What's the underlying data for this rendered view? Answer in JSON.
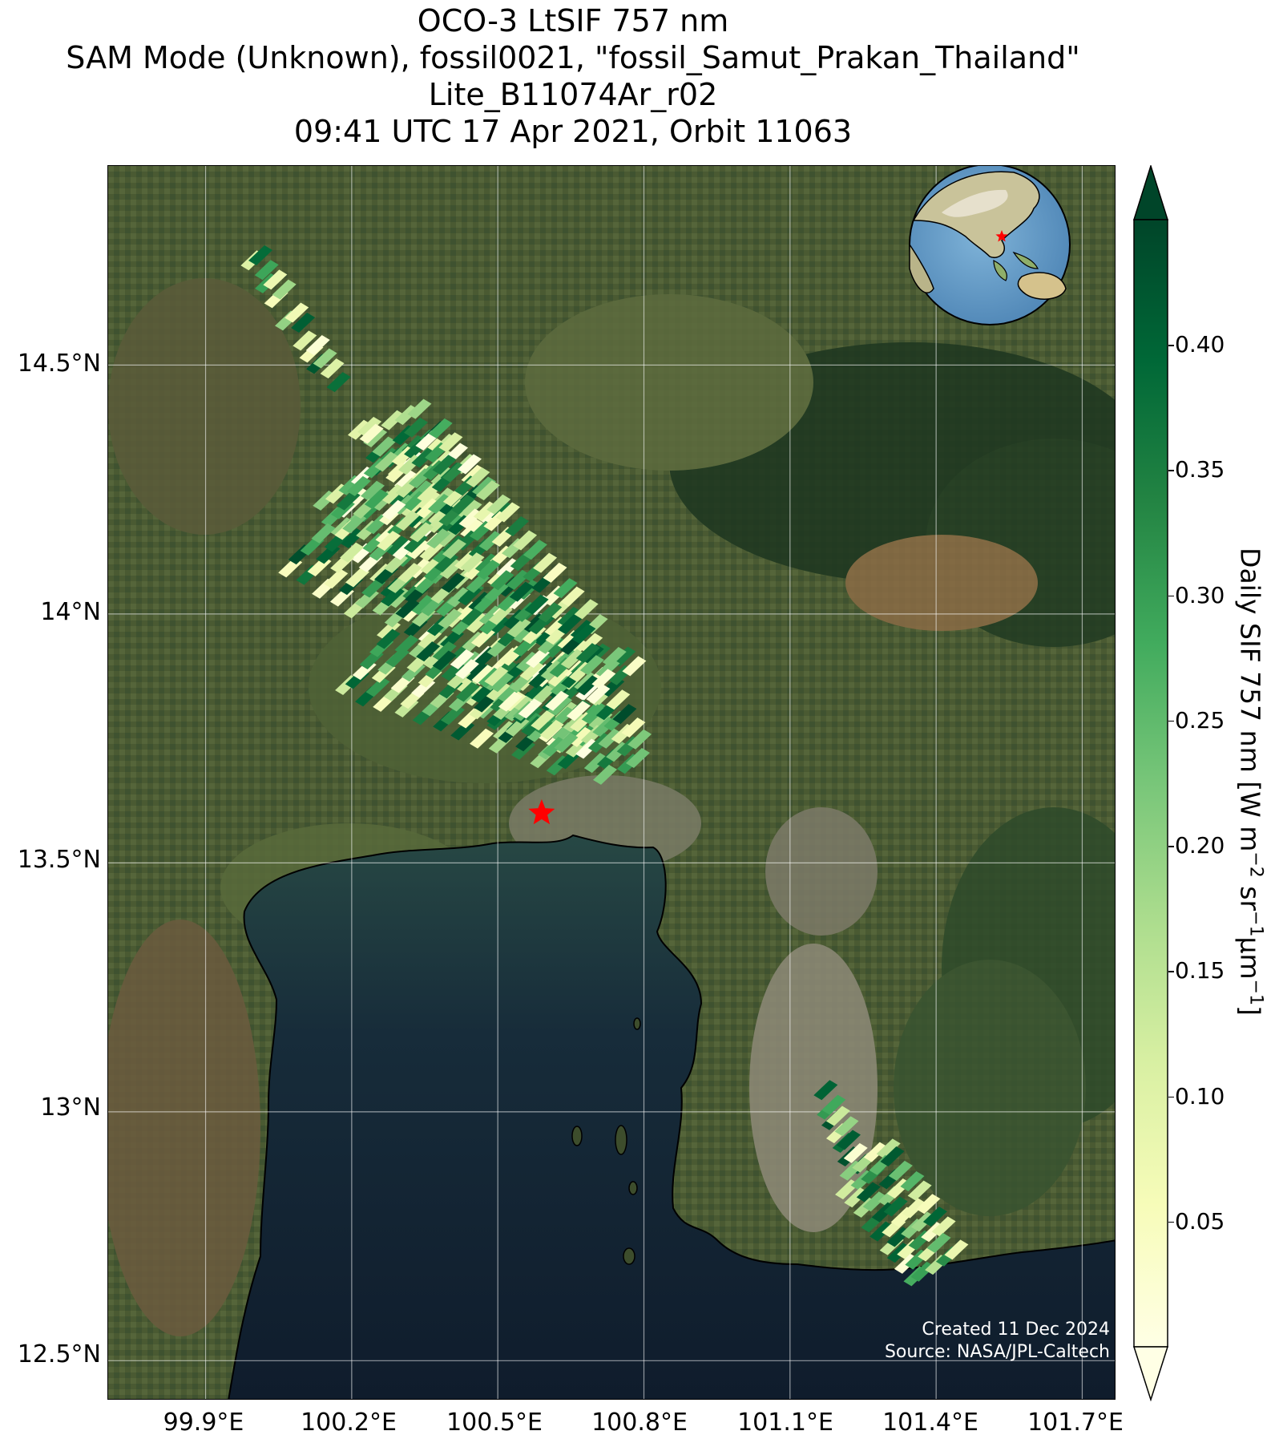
{
  "title": {
    "line1": "OCO-3 LtSIF 757 nm",
    "line2": "SAM Mode (Unknown), fossil0021, \"fossil_Samut_Prakan_Thailand\"",
    "line3": "Lite_B11074Ar_r02",
    "line4": "09:41 UTC 17 Apr 2021, Orbit 11063"
  },
  "axes": {
    "lon_ticks": [
      "99.9°E",
      "100.2°E",
      "100.5°E",
      "100.8°E",
      "101.1°E",
      "101.4°E",
      "101.7°E"
    ],
    "lat_ticks": [
      "14.5°N",
      "14°N",
      "13.5°N",
      "13°N",
      "12.5°N"
    ],
    "lon_range": [
      99.7,
      101.77
    ],
    "lat_range": [
      12.42,
      14.9
    ],
    "gridlines": true
  },
  "colorbar": {
    "label_main": "Daily SIF 757 nm [W m",
    "label_sup1": "−2",
    "label_mid": " sr",
    "label_sup2": "−1",
    "label_mu": "μm",
    "label_sup3": "−1",
    "label_end": "]",
    "ticks": [
      "0.40",
      "0.35",
      "0.30",
      "0.25",
      "0.20",
      "0.15",
      "0.10",
      "0.05"
    ],
    "tick_values": [
      0.4,
      0.35,
      0.3,
      0.25,
      0.2,
      0.15,
      0.1,
      0.05
    ],
    "range": [
      0.0,
      0.45
    ],
    "extend": "both",
    "colormap": "YlGn",
    "colors": [
      "#ffffe5",
      "#f7fcb9",
      "#d9f0a3",
      "#addd8e",
      "#78c679",
      "#41ab5d",
      "#238443",
      "#006837",
      "#004529"
    ]
  },
  "target": {
    "name": "fossil_Samut_Prakan_Thailand",
    "lon": 100.59,
    "lat": 13.6,
    "marker": "red-star"
  },
  "inset": {
    "description_icon": "globe-icon",
    "marker": "red-star"
  },
  "credit": {
    "line1": "Created 11 Dec 2024",
    "line2": "Source: NASA/JPL-Caltech"
  }
}
